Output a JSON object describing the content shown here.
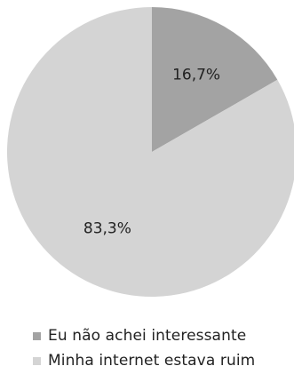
{
  "chart_data": {
    "type": "pie",
    "slices": [
      {
        "label": "Eu não achei interessante",
        "value": 16.7,
        "display": "16,7%",
        "color": "#a3a3a3"
      },
      {
        "label": "Minha internet estava ruim",
        "value": 83.3,
        "display": "83,3%",
        "color": "#d4d4d4"
      }
    ],
    "start_angle_deg": 0,
    "direction": "clockwise",
    "legend_position": "bottom"
  }
}
